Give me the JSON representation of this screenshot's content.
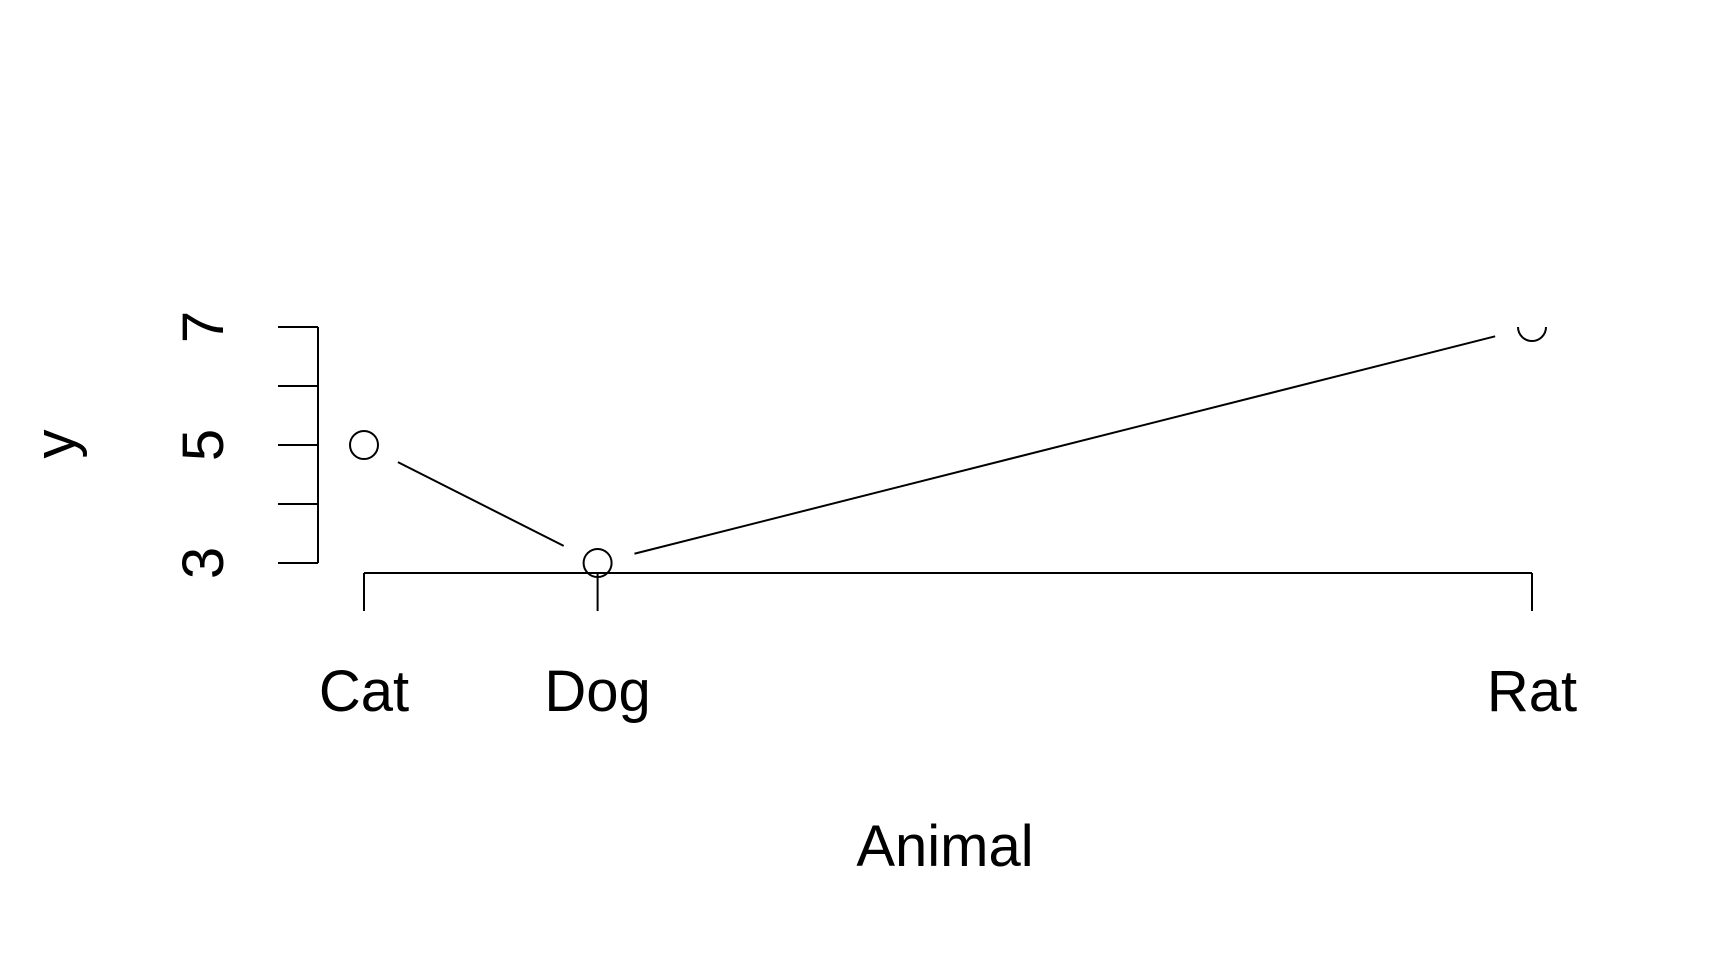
{
  "chart_data": {
    "type": "line",
    "categories": [
      "Cat",
      "Dog",
      "Rat"
    ],
    "x": [
      1,
      2,
      6
    ],
    "values": [
      5,
      3,
      7
    ],
    "xlabel": "Animal",
    "ylabel": "y",
    "ylim": [
      3,
      7
    ],
    "xlim": [
      1,
      6
    ],
    "y_ticks": [
      3,
      4,
      5,
      6,
      7
    ],
    "y_tick_labels": [
      "3",
      "5",
      "7"
    ],
    "grid": false,
    "marker": "open-circle",
    "colors": {
      "line": "#000000",
      "background": "#ffffff"
    }
  }
}
